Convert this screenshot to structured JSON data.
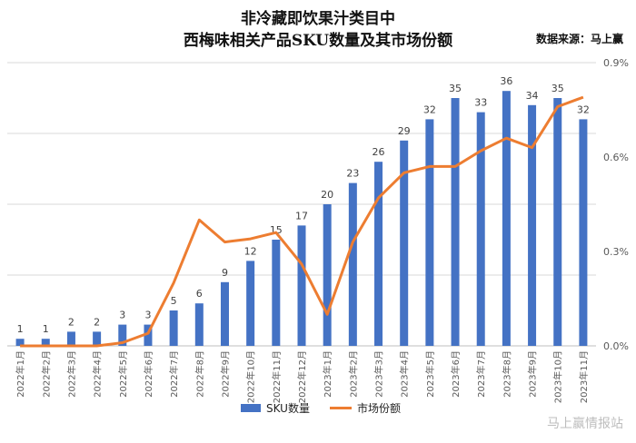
{
  "title_line1": "非冷藏即饮果汁类目中",
  "title_line2": "西梅味相关产品SKU数量及其市场份额",
  "source": "数据来源：马上赢",
  "watermark": "马上赢情报站",
  "chart_data": {
    "type": "bar+line",
    "categories": [
      "2022年1月",
      "2022年2月",
      "2022年3月",
      "2022年4月",
      "2022年5月",
      "2022年6月",
      "2022年7月",
      "2022年8月",
      "2022年9月",
      "2022年10月",
      "2022年11月",
      "2022年12月",
      "2023年1月",
      "2023年2月",
      "2023年3月",
      "2023年4月",
      "2023年5月",
      "2023年6月",
      "2023年7月",
      "2023年8月",
      "2023年9月",
      "2023年10月",
      "2023年11月"
    ],
    "series": [
      {
        "name": "SKU数量",
        "type": "bar",
        "color": "#4472c4",
        "values": [
          1,
          1,
          2,
          2,
          3,
          3,
          5,
          6,
          9,
          12,
          15,
          17,
          20,
          23,
          26,
          29,
          32,
          35,
          33,
          36,
          34,
          35,
          32
        ]
      },
      {
        "name": "市场份额",
        "type": "line",
        "color": "#ed7d31",
        "axis": "right",
        "values": [
          0.0,
          0.0,
          0.0,
          0.0,
          0.01,
          0.04,
          0.2,
          0.4,
          0.33,
          0.34,
          0.36,
          0.26,
          0.1,
          0.33,
          0.47,
          0.55,
          0.57,
          0.57,
          0.62,
          0.66,
          0.63,
          0.76,
          0.79
        ]
      }
    ],
    "y_right_ticks": [
      "0.0%",
      "0.3%",
      "0.6%",
      "0.9%"
    ],
    "y_right_range": [
      0,
      0.9
    ],
    "y_left_range": [
      0,
      40
    ],
    "grid": true,
    "legend": "bottom"
  }
}
